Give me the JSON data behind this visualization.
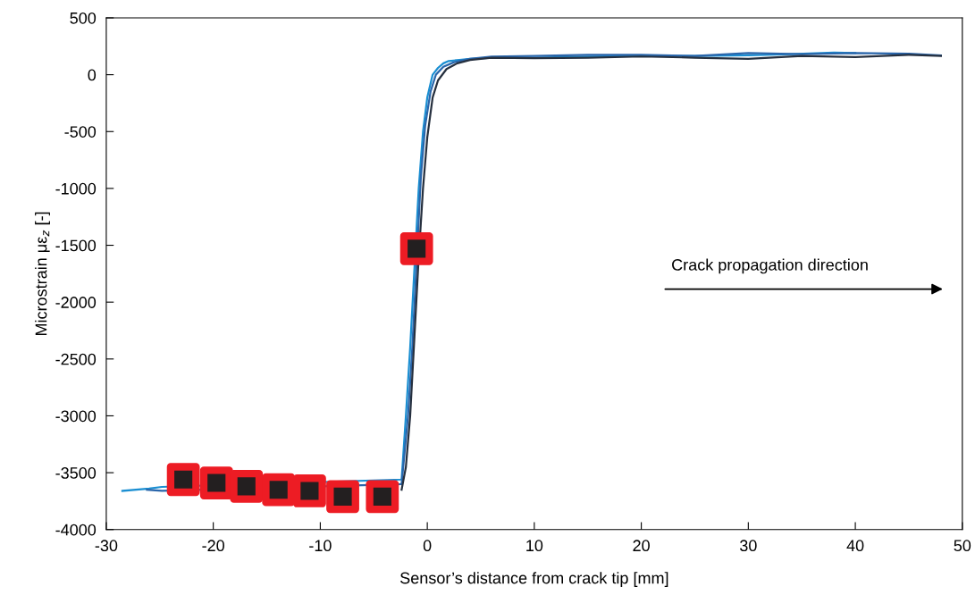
{
  "chart_data": {
    "type": "line",
    "xlabel": "Sensor’s distance from crack tip [mm]",
    "ylabel": "Microstrain με$_{z}$ [-]",
    "xlim": [
      -30,
      50
    ],
    "ylim": [
      -4000,
      500
    ],
    "xticks": [
      -30,
      -20,
      -10,
      0,
      10,
      20,
      30,
      40,
      50
    ],
    "yticks": [
      -4000,
      -3500,
      -3000,
      -2500,
      -2000,
      -1500,
      -1000,
      -500,
      0,
      500
    ],
    "grid": false,
    "legend": false,
    "line_style": "solid",
    "marker": "none",
    "annotations": [
      "Crack propagation direction"
    ],
    "series": [
      {
        "color": "#1b8fd2",
        "x": [
          -28.5,
          -26,
          -24.8,
          -2.4,
          -2,
          -1.6,
          -1.2,
          -0.8,
          -0.4,
          0,
          0.5,
          1,
          1.5,
          2,
          3,
          4,
          6,
          10,
          15,
          20,
          25,
          30,
          34,
          38,
          40
        ],
        "values": [
          -3660,
          -3640,
          -3625,
          -3560,
          -3000,
          -2400,
          -1700,
          -1000,
          -500,
          -200,
          0,
          60,
          100,
          120,
          130,
          140,
          150,
          150,
          160,
          165,
          165,
          170,
          180,
          195,
          190
        ]
      },
      {
        "color": "#2a66ab",
        "x": [
          -26.2,
          -24.8,
          -2.4,
          -2.2,
          -1.8,
          -1.4,
          -0.6,
          -0.2,
          0.3,
          0.8,
          1.5,
          2.5,
          4,
          6,
          10,
          15,
          20,
          25,
          30,
          35,
          40,
          45,
          48
        ],
        "values": [
          -3650,
          -3660,
          -3600,
          -3400,
          -3000,
          -2400,
          -900,
          -450,
          -150,
          0,
          70,
          110,
          140,
          160,
          165,
          175,
          175,
          165,
          190,
          180,
          190,
          185,
          170
        ]
      },
      {
        "color": "#26303f",
        "x": [
          -2.4,
          -2,
          -1.6,
          -1.2,
          -0.8,
          -0.4,
          0,
          0.5,
          1,
          1.8,
          2.8,
          4,
          6,
          10,
          15,
          20,
          25,
          30,
          35,
          40,
          45,
          48
        ],
        "values": [
          -3650,
          -3450,
          -3000,
          -2300,
          -1600,
          -1000,
          -550,
          -200,
          -50,
          50,
          100,
          130,
          150,
          145,
          150,
          160,
          150,
          140,
          165,
          155,
          175,
          165
        ]
      },
      {
        "type": "scatter",
        "marker": "square",
        "color": "#ed1c24",
        "x": [
          -22.8,
          -19.7,
          -16.9,
          -13.9,
          -11.0,
          -7.9,
          -4.2,
          -1.0
        ],
        "values": [
          -3560,
          -3590,
          -3620,
          -3650,
          -3660,
          -3710,
          -3710,
          -1530
        ]
      }
    ]
  }
}
